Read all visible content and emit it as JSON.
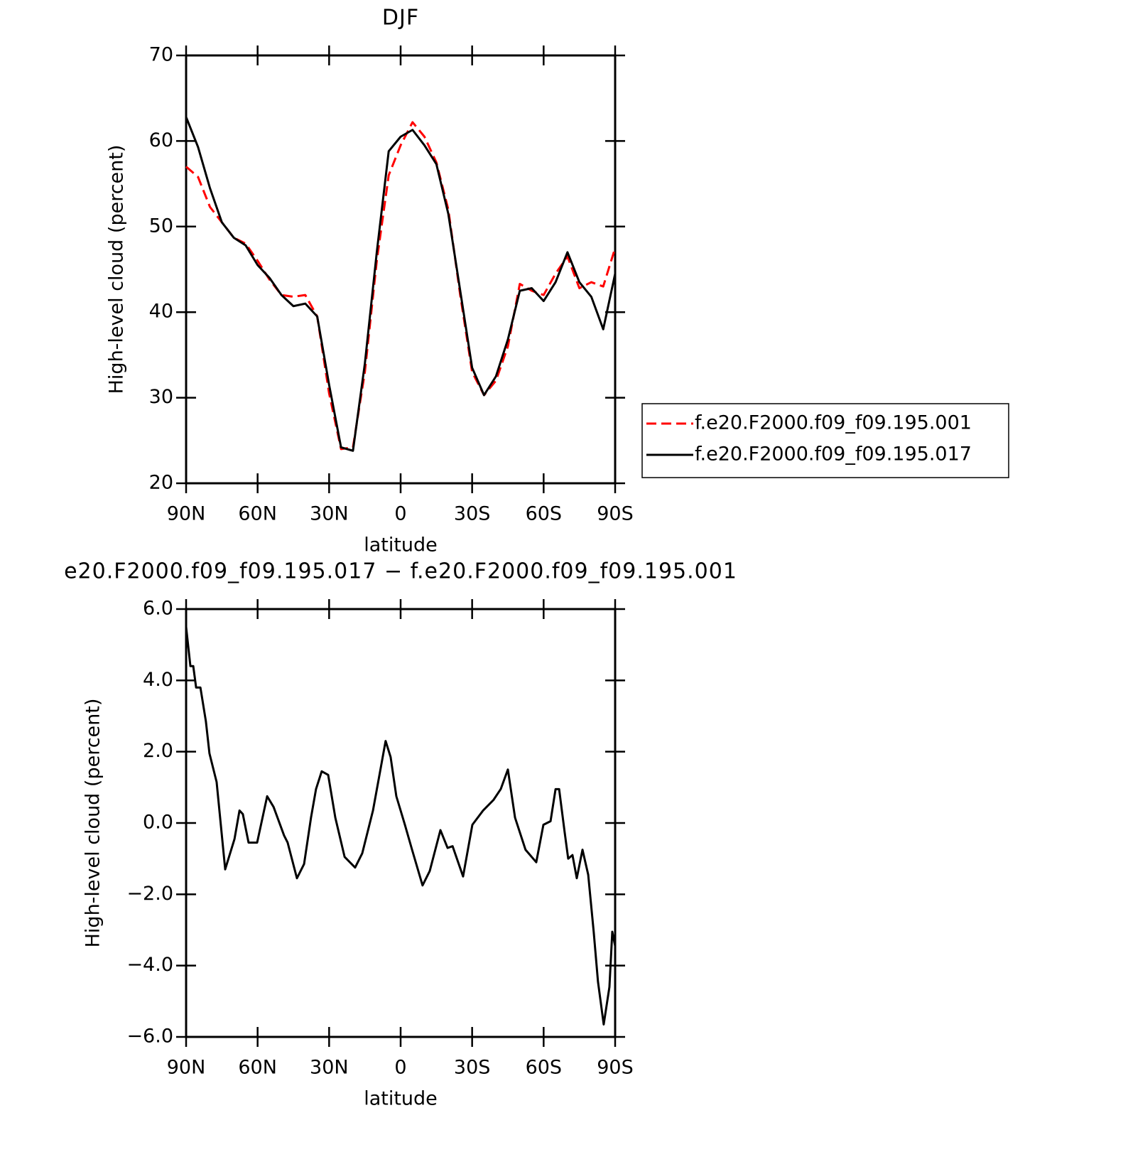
{
  "chart_data": [
    {
      "type": "line",
      "title": "DJF",
      "xlabel": "latitude",
      "ylabel": "High-level cloud (percent)",
      "x": [
        90,
        85,
        80,
        75,
        70,
        65,
        60,
        55,
        50,
        45,
        40,
        35,
        30,
        25,
        20,
        15,
        10,
        5,
        0,
        -5,
        -10,
        -15,
        -20,
        -25,
        -30,
        -35,
        -40,
        -45,
        -50,
        -55,
        -60,
        -65,
        -70,
        -75,
        -80,
        -85,
        -90
      ],
      "xlim": [
        90,
        -90
      ],
      "xticks": [
        {
          "value": 90,
          "label": "90N"
        },
        {
          "value": 60,
          "label": "60N"
        },
        {
          "value": 30,
          "label": "30N"
        },
        0,
        {
          "value": -30,
          "label": "30S"
        },
        {
          "value": -60,
          "label": "60S"
        },
        {
          "value": -90,
          "label": "90S"
        }
      ],
      "ylim": [
        20,
        70
      ],
      "yticks": [
        20,
        30,
        40,
        50,
        60,
        70
      ],
      "legend": "outside-right",
      "series": [
        {
          "name": "f.e20.F2000.f09_f09.195.001",
          "color": "#ff0000",
          "dashed": true,
          "values": [
            57,
            55.8,
            52.3,
            50.5,
            48.7,
            48,
            46,
            43.8,
            42,
            41.8,
            42,
            39.5,
            30.5,
            24,
            24.2,
            33,
            46,
            56,
            59.5,
            62.2,
            60.5,
            57.5,
            52,
            42,
            33,
            30.3,
            32,
            36,
            43.3,
            42.5,
            42,
            44.5,
            46.5,
            42.8,
            43.5,
            43,
            47.5
          ]
        },
        {
          "name": "f.e20.F2000.f09_f09.195.017",
          "color": "#000000",
          "dashed": false,
          "values": [
            62.8,
            59.3,
            54.5,
            50.5,
            48.7,
            47.8,
            45.5,
            44,
            42,
            40.7,
            41,
            39.5,
            31.5,
            24.2,
            23.8,
            34,
            47,
            58.8,
            60.5,
            61.3,
            59.5,
            57.3,
            51.5,
            42.5,
            33.5,
            30.3,
            32.5,
            36.8,
            42.5,
            42.8,
            41.3,
            43.5,
            47,
            43.5,
            41.8,
            38,
            44.5
          ]
        }
      ]
    },
    {
      "type": "line",
      "title": "e20.F2000.f09_f09.195.017 − f.e20.F2000.f09_f09.195.001",
      "xlabel": "latitude",
      "ylabel": "High-level cloud (percent)",
      "x": [
        90,
        88.2,
        87,
        85.8,
        84,
        81.7,
        80.2,
        78.7,
        77.2,
        73.6,
        69.7,
        67.6,
        66.2,
        63.8,
        60.2,
        56,
        53.3,
        48.9,
        47.4,
        43.5,
        40.5,
        37.6,
        35.5,
        33.1,
        30.4,
        27.4,
        23.5,
        19.1,
        16.1,
        11.6,
        8.6,
        6.3,
        4.2,
        1.8,
        -1.8,
        -4.8,
        -9.2,
        -12.2,
        -16.7,
        -19.7,
        -21.8,
        -26.2,
        -30.1,
        -34.6,
        -39,
        -42,
        -45,
        -48,
        -52.4,
        -56.9,
        -59.9,
        -62.9,
        -65,
        -66.5,
        -68.8,
        -70.3,
        -72.1,
        -73.9,
        -76.3,
        -78.7,
        -81,
        -82.8,
        -85.2,
        -87.6,
        -88.8,
        -90
      ],
      "values": [
        5.5,
        4.4,
        4.4,
        3.8,
        3.8,
        2.85,
        1.95,
        1.55,
        1.15,
        -1.3,
        -0.45,
        0.35,
        0.25,
        -0.55,
        -0.55,
        0.75,
        0.45,
        -0.35,
        -0.55,
        -1.55,
        -1.15,
        0.15,
        0.95,
        1.45,
        1.35,
        0.15,
        -0.95,
        -1.25,
        -0.85,
        0.35,
        1.45,
        2.3,
        1.85,
        0.75,
        -0.05,
        -0.75,
        -1.75,
        -1.35,
        -0.2,
        -0.7,
        -0.65,
        -1.5,
        -0.05,
        0.35,
        0.65,
        0.95,
        1.5,
        0.15,
        -0.75,
        -1.1,
        -0.05,
        0.05,
        0.95,
        0.95,
        -0.25,
        -1,
        -0.9,
        -1.55,
        -0.75,
        -1.45,
        -3.05,
        -4.45,
        -5.65,
        -4.6,
        -3.05,
        -3.45
      ],
      "color": "#000000",
      "xlim": [
        90,
        -90
      ],
      "xticks": [
        {
          "value": 90,
          "label": "90N"
        },
        {
          "value": 60,
          "label": "60N"
        },
        {
          "value": 30,
          "label": "30N"
        },
        0,
        {
          "value": -30,
          "label": "30S"
        },
        {
          "value": -60,
          "label": "60S"
        },
        {
          "value": -90,
          "label": "90S"
        }
      ],
      "ylim": [
        -6,
        6
      ],
      "yticks": [
        {
          "value": -6,
          "label": "−6.0"
        },
        {
          "value": -4,
          "label": "−4.0"
        },
        {
          "value": -2,
          "label": "−2.0"
        },
        {
          "value": 0,
          "label": "0.0"
        },
        {
          "value": 2,
          "label": "2.0"
        },
        {
          "value": 4,
          "label": "4.0"
        },
        {
          "value": 6,
          "label": "6.0"
        }
      ]
    }
  ]
}
